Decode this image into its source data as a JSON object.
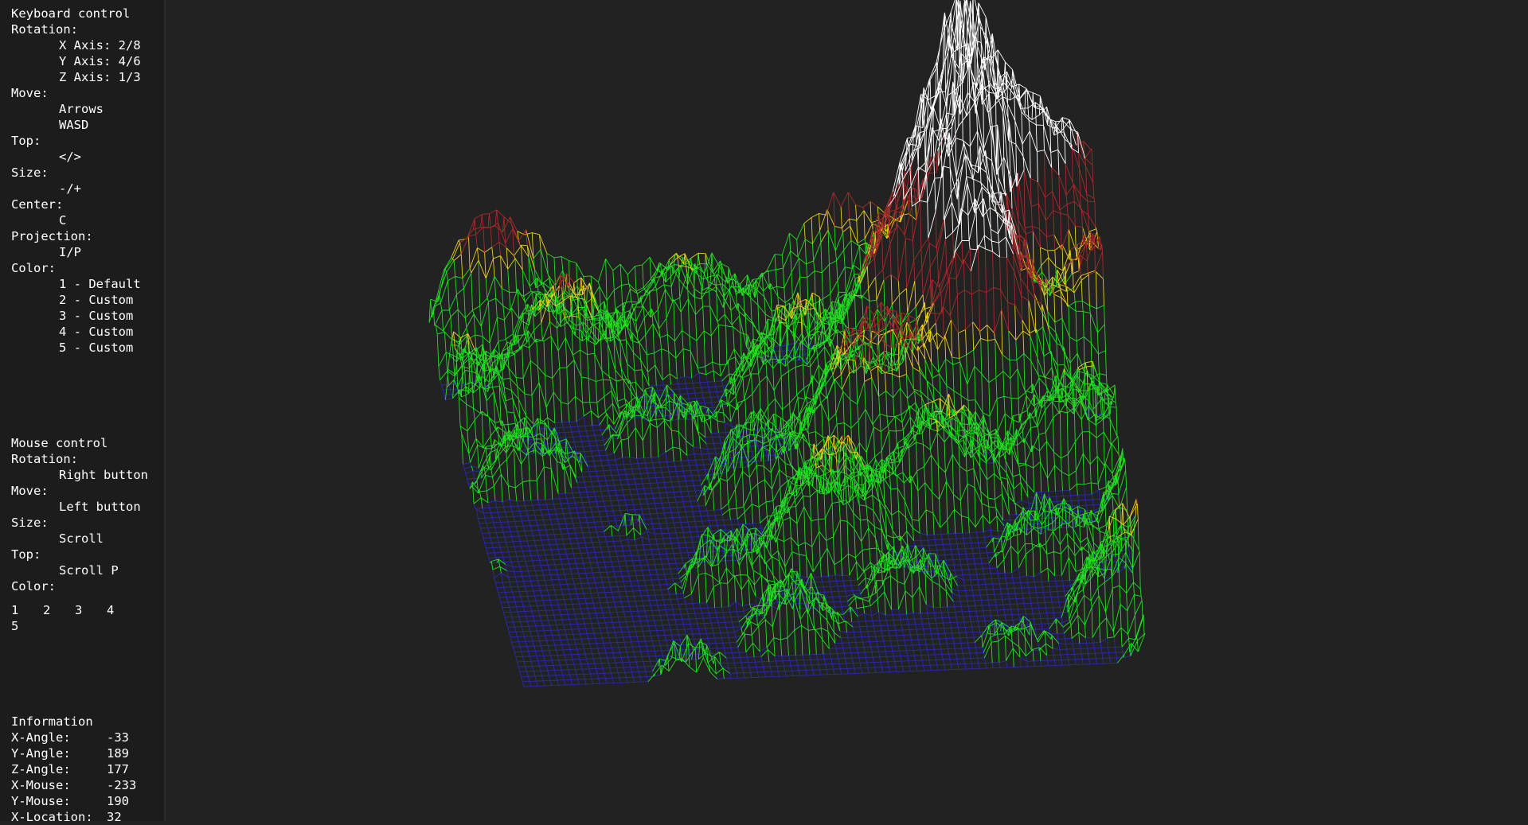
{
  "keyboard": {
    "title": "Keyboard control",
    "sections": [
      {
        "label": "Rotation:",
        "items": [
          "X Axis: 2/8",
          "Y Axis: 4/6",
          "Z Axis: 1/3"
        ]
      },
      {
        "label": "Move:",
        "items": [
          "Arrows",
          "WASD"
        ]
      },
      {
        "label": "Top:",
        "items": [
          "</>"
        ]
      },
      {
        "label": "Size:",
        "items": [
          "-/+"
        ]
      },
      {
        "label": "Center:",
        "items": [
          "C"
        ]
      },
      {
        "label": "Projection:",
        "items": [
          "I/P"
        ]
      },
      {
        "label": "Color:",
        "items": [
          "1 - Default",
          "2 - Custom",
          "3 - Custom",
          "4 - Custom",
          "5 - Custom"
        ]
      }
    ]
  },
  "mouse": {
    "title": "Mouse control",
    "sections": [
      {
        "label": "Rotation:",
        "items": [
          "Right button"
        ]
      },
      {
        "label": "Move:",
        "items": [
          "Left button"
        ]
      },
      {
        "label": "Size:",
        "items": [
          "Scroll"
        ]
      },
      {
        "label": "Top:",
        "items": [
          "Scroll P"
        ]
      },
      {
        "label": "Color:",
        "items": []
      }
    ],
    "color_buttons": [
      "1",
      "2",
      "3",
      "4",
      "5"
    ]
  },
  "information": {
    "title": "Information",
    "rows": [
      {
        "label": "X-Angle:",
        "value": -33
      },
      {
        "label": "Y-Angle:",
        "value": 189
      },
      {
        "label": "Z-Angle:",
        "value": 177
      },
      {
        "label": "X-Mouse:",
        "value": -233
      },
      {
        "label": "Y-Mouse:",
        "value": 190
      },
      {
        "label": "X-Location:",
        "value": 32
      }
    ]
  }
}
